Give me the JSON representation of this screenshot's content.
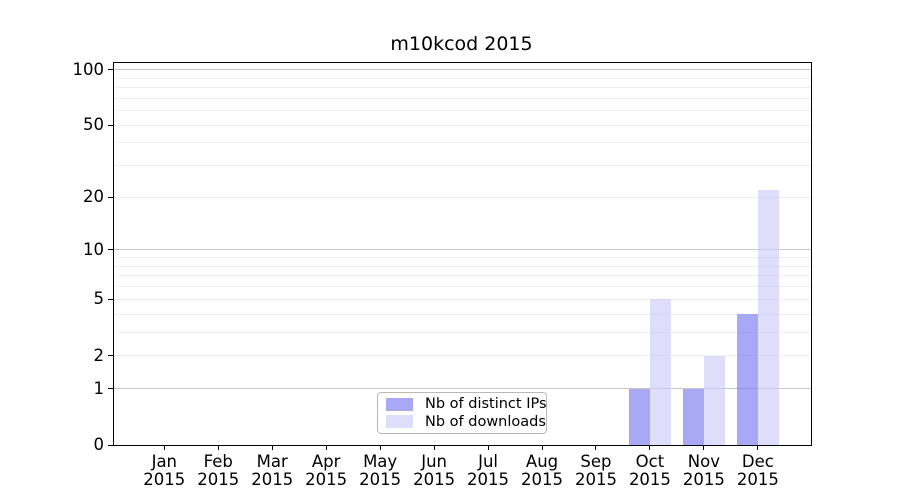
{
  "figure": {
    "title": "m10kcod 2015"
  },
  "chart_data": {
    "type": "bar",
    "title": "m10kcod 2015",
    "categories": [
      "Jan",
      "Feb",
      "Mar",
      "Apr",
      "May",
      "Jun",
      "Jul",
      "Aug",
      "Sep",
      "Oct",
      "Nov",
      "Dec"
    ],
    "x_year_label": "2015",
    "series": [
      {
        "name": "Nb of distinct IPs",
        "color": "rgba(122,122,240,0.65)",
        "values": [
          0,
          0,
          0,
          0,
          0,
          0,
          0,
          0,
          0,
          1,
          1,
          4
        ]
      },
      {
        "name": "Nb of downloads",
        "color": "rgba(205,205,247,0.65)",
        "values": [
          0,
          0,
          0,
          0,
          0,
          0,
          0,
          0,
          0,
          5,
          2,
          22
        ]
      }
    ],
    "y_axis": {
      "ticks": [
        0,
        1,
        2,
        5,
        10,
        20,
        50,
        100
      ],
      "tick_labels": [
        "0",
        "1",
        "2",
        "5",
        "10",
        "20",
        "50",
        "100"
      ],
      "scale": "log10(1+value)",
      "ylim": [
        0,
        108.5
      ],
      "major_gridlines": [
        1,
        10,
        100
      ],
      "minor_gridlines": [
        2,
        3,
        4,
        5,
        6,
        7,
        8,
        9,
        20,
        30,
        40,
        50,
        60,
        70,
        80,
        90
      ]
    },
    "legend": {
      "entries": [
        "Nb of distinct IPs",
        "Nb of downloads"
      ],
      "position": "lower center"
    },
    "grid": true
  }
}
